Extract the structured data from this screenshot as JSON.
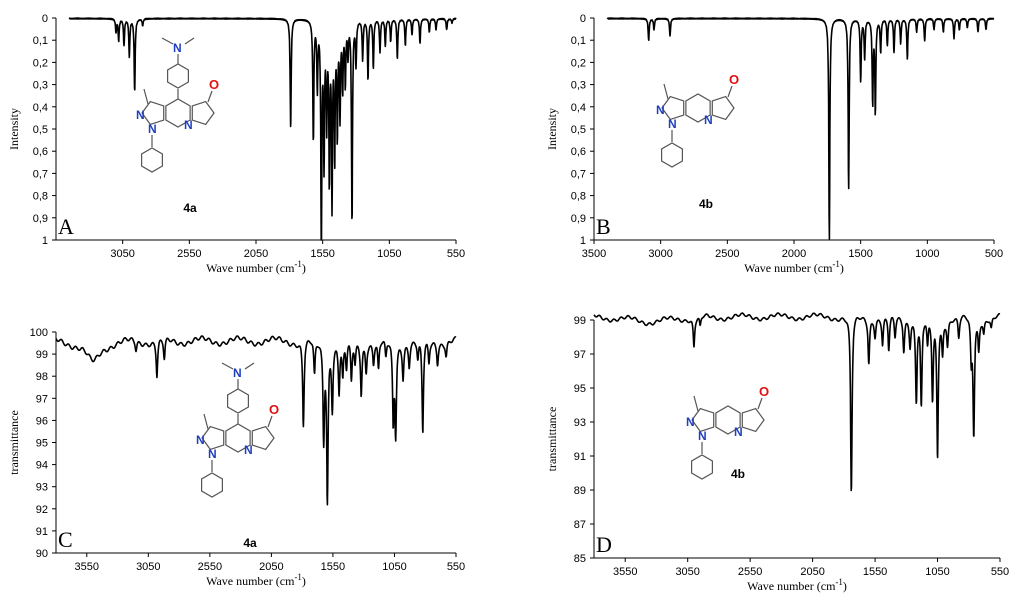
{
  "chart_data": [
    {
      "id": "A",
      "type": "line",
      "panel_label": "A",
      "compound": "4a",
      "ylabel": "Intensity",
      "xlabel": "Wave number (cm-1)",
      "xlim": [
        3550,
        550
      ],
      "ylim": [
        0,
        1
      ],
      "y_inverted": true,
      "xticks": [
        "3050",
        "2550",
        "2050",
        "1550",
        "1050",
        "550"
      ],
      "xtick_values": [
        3050,
        2550,
        2050,
        1550,
        1050,
        550
      ],
      "yticks": [
        "0",
        "0,1",
        "0,2",
        "0,3",
        "0,4",
        "0,5",
        "0,6",
        "0,7",
        "0,8",
        "0,9",
        "1"
      ],
      "ytick_values": [
        0,
        0.1,
        0.2,
        0.3,
        0.4,
        0.5,
        0.6,
        0.7,
        0.8,
        0.9,
        1
      ],
      "baseline": 0,
      "x_data_start": 3450,
      "peaks": [
        [
          3100,
          0.06
        ],
        [
          3080,
          0.1
        ],
        [
          3040,
          0.12
        ],
        [
          3000,
          0.17
        ],
        [
          2960,
          0.33
        ],
        [
          2900,
          0.03
        ],
        [
          1790,
          0.5
        ],
        [
          1620,
          0.55
        ],
        [
          1590,
          0.3
        ],
        [
          1560,
          1.0
        ],
        [
          1540,
          0.62
        ],
        [
          1520,
          0.45
        ],
        [
          1500,
          0.7
        ],
        [
          1480,
          0.8
        ],
        [
          1460,
          0.6
        ],
        [
          1440,
          0.5
        ],
        [
          1420,
          0.42
        ],
        [
          1400,
          0.3
        ],
        [
          1380,
          0.28
        ],
        [
          1360,
          0.15
        ],
        [
          1330,
          0.92
        ],
        [
          1300,
          0.2
        ],
        [
          1250,
          0.18
        ],
        [
          1210,
          0.27
        ],
        [
          1170,
          0.22
        ],
        [
          1120,
          0.15
        ],
        [
          1080,
          0.12
        ],
        [
          1040,
          0.1
        ],
        [
          990,
          0.18
        ],
        [
          930,
          0.12
        ],
        [
          880,
          0.07
        ],
        [
          820,
          0.11
        ],
        [
          750,
          0.06
        ],
        [
          700,
          0.05
        ],
        [
          620,
          0.05
        ],
        [
          580,
          0.02
        ]
      ]
    },
    {
      "id": "B",
      "type": "line",
      "panel_label": "B",
      "compound": "4b",
      "ylabel": "Intensity",
      "xlabel": "Wave number (cm-1)",
      "xlim": [
        3500,
        500
      ],
      "ylim": [
        0,
        1
      ],
      "y_inverted": true,
      "xticks": [
        "3500",
        "3000",
        "2500",
        "2000",
        "1500",
        "1000",
        "500"
      ],
      "xtick_values": [
        3500,
        3000,
        2500,
        2000,
        1500,
        1000,
        500
      ],
      "yticks": [
        "0",
        "0,1",
        "0,2",
        "0,3",
        "0,4",
        "0,5",
        "0,6",
        "0,7",
        "0,8",
        "0,9",
        "1"
      ],
      "ytick_values": [
        0,
        0.1,
        0.2,
        0.3,
        0.4,
        0.5,
        0.6,
        0.7,
        0.8,
        0.9,
        1
      ],
      "baseline": 0,
      "x_data_start": 3400,
      "peaks": [
        [
          3090,
          0.1
        ],
        [
          3050,
          0.05
        ],
        [
          2930,
          0.08
        ],
        [
          1735,
          1.0
        ],
        [
          1590,
          0.77
        ],
        [
          1500,
          0.28
        ],
        [
          1470,
          0.18
        ],
        [
          1410,
          0.38
        ],
        [
          1390,
          0.42
        ],
        [
          1350,
          0.15
        ],
        [
          1300,
          0.12
        ],
        [
          1250,
          0.15
        ],
        [
          1200,
          0.11
        ],
        [
          1150,
          0.18
        ],
        [
          1080,
          0.06
        ],
        [
          1020,
          0.1
        ],
        [
          950,
          0.05
        ],
        [
          880,
          0.06
        ],
        [
          800,
          0.09
        ],
        [
          760,
          0.05
        ],
        [
          700,
          0.04
        ],
        [
          620,
          0.06
        ],
        [
          560,
          0.05
        ]
      ]
    },
    {
      "id": "C",
      "type": "line",
      "panel_label": "C",
      "compound": "4a",
      "ylabel": "transmittance",
      "xlabel": "Wave number (cm-1)",
      "xlim": [
        3800,
        550
      ],
      "ylim": [
        90,
        100
      ],
      "y_inverted": false,
      "xticks": [
        "3550",
        "3050",
        "2550",
        "2050",
        "1550",
        "1050",
        "550"
      ],
      "xtick_values": [
        3550,
        3050,
        2550,
        2050,
        1550,
        1050,
        550
      ],
      "yticks": [
        "90",
        "91",
        "92",
        "93",
        "94",
        "95",
        "96",
        "97",
        "98",
        "99",
        "100"
      ],
      "ytick_values": [
        90,
        91,
        92,
        93,
        94,
        95,
        96,
        97,
        98,
        99,
        100
      ],
      "baseline": 99.6,
      "x_data_start": 3800,
      "broad": [
        [
          3500,
          1.0,
          70
        ]
      ],
      "peaks": [
        [
          3150,
          0.4
        ],
        [
          2980,
          1.6
        ],
        [
          2920,
          0.9
        ],
        [
          1790,
          3.8
        ],
        [
          1700,
          1.6
        ],
        [
          1625,
          4.3
        ],
        [
          1595,
          7.0
        ],
        [
          1555,
          2.8
        ],
        [
          1500,
          2.2
        ],
        [
          1470,
          1.6
        ],
        [
          1440,
          1.2
        ],
        [
          1400,
          1.8
        ],
        [
          1370,
          1.0
        ],
        [
          1320,
          2.3
        ],
        [
          1280,
          1.2
        ],
        [
          1220,
          0.9
        ],
        [
          1180,
          1.3
        ],
        [
          1120,
          0.8
        ],
        [
          1060,
          3.6
        ],
        [
          1040,
          4.0
        ],
        [
          980,
          1.5
        ],
        [
          930,
          1.0
        ],
        [
          860,
          0.8
        ],
        [
          820,
          4.2
        ],
        [
          770,
          1.0
        ],
        [
          700,
          0.9
        ],
        [
          630,
          0.6
        ]
      ]
    },
    {
      "id": "D",
      "type": "line",
      "panel_label": "D",
      "compound": "4b",
      "ylabel": "transmittance",
      "xlabel": "Wave number (cm-1)",
      "xlim": [
        3800,
        550
      ],
      "ylim": [
        85,
        99
      ],
      "y_inverted": false,
      "xticks": [
        "3550",
        "3050",
        "2550",
        "2050",
        "1550",
        "1050",
        "550"
      ],
      "xtick_values": [
        3550,
        3050,
        2550,
        2050,
        1550,
        1050,
        550
      ],
      "yticks": [
        "85",
        "87",
        "89",
        "91",
        "93",
        "95",
        "97",
        "99"
      ],
      "ytick_values": [
        85,
        87,
        89,
        91,
        93,
        95,
        97,
        99
      ],
      "baseline": 99.2,
      "x_data_start": 3800,
      "broad": [
        [
          3350,
          0.3,
          200
        ]
      ],
      "peaks": [
        [
          3000,
          1.7
        ],
        [
          2950,
          0.6
        ],
        [
          1740,
          10.5
        ],
        [
          1600,
          2.6
        ],
        [
          1550,
          1.0
        ],
        [
          1490,
          1.6
        ],
        [
          1440,
          2.0
        ],
        [
          1390,
          1.2
        ],
        [
          1320,
          1.9
        ],
        [
          1270,
          1.5
        ],
        [
          1220,
          4.8
        ],
        [
          1180,
          5.2
        ],
        [
          1130,
          1.6
        ],
        [
          1090,
          4.8
        ],
        [
          1050,
          8.1
        ],
        [
          1010,
          2.0
        ],
        [
          970,
          1.5
        ],
        [
          880,
          1.2
        ],
        [
          780,
          2.5
        ],
        [
          760,
          6.8
        ],
        [
          720,
          1.8
        ],
        [
          680,
          0.8
        ],
        [
          620,
          0.6
        ]
      ]
    }
  ]
}
